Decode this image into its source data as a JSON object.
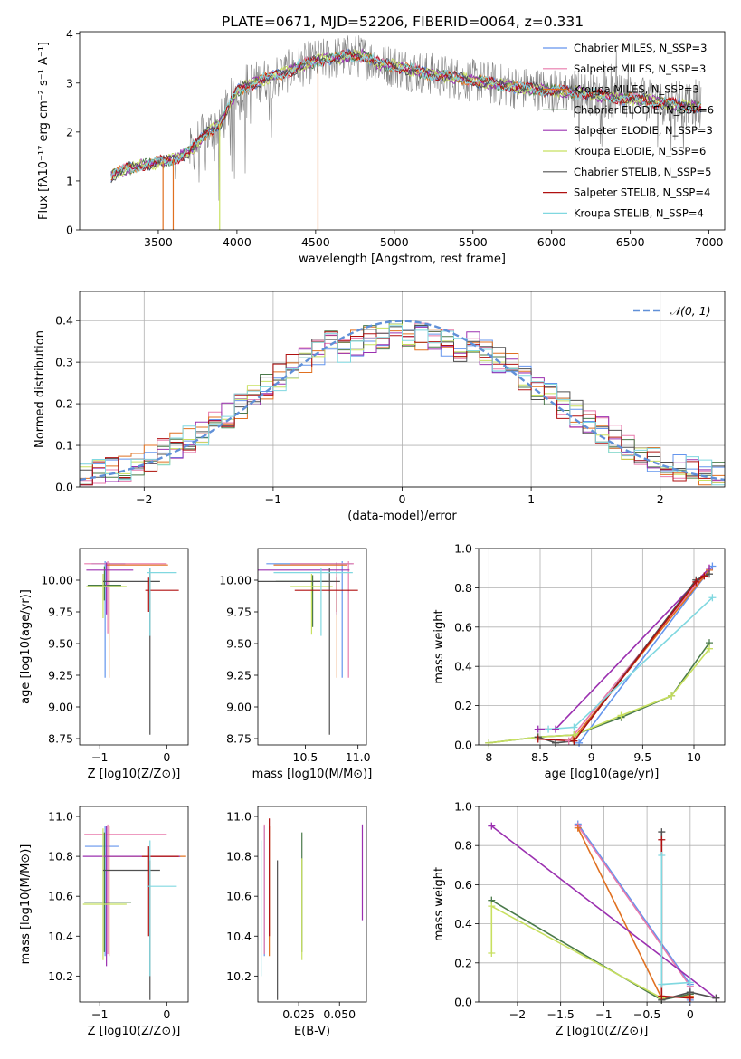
{
  "title": "PLATE=0671, MJD=52206, FIBERID=0064, z=0.331",
  "colors": {
    "Chabrier MILES": "#6495ed",
    "Salpeter MILES": "#e87aac",
    "Kroupa MILES": "#e07020",
    "Chabrier ELODIE": "#4a7a4a",
    "Salpeter ELODIE": "#9b30b0",
    "Kroupa ELODIE": "#c8e060",
    "Chabrier STELIB": "#505050",
    "Salpeter STELIB": "#b01010",
    "Kroupa STELIB": "#80d8e0",
    "data": "#808080",
    "normal": "#6090d8"
  },
  "chart_data": [
    {
      "id": "spectrum",
      "type": "line",
      "xlabel": "wavelength [Angstrom, rest frame]",
      "ylabel": "Flux [fλ10⁻¹⁷ erg cm⁻² s⁻¹ A⁻¹]",
      "xlim": [
        3000,
        7100
      ],
      "ylim": [
        0,
        4.05
      ],
      "xticks": [
        3500,
        4000,
        4500,
        5000,
        5500,
        6000,
        6500,
        7000
      ],
      "yticks": [
        0,
        1,
        2,
        3,
        4
      ],
      "continuum": {
        "x": [
          3200,
          3300,
          3400,
          3500,
          3600,
          3700,
          3800,
          3900,
          4000,
          4100,
          4200,
          4300,
          4400,
          4500,
          4600,
          4700,
          4800,
          4900,
          5000,
          5200,
          5400,
          5600,
          5800,
          6000,
          6200,
          6400,
          6600,
          6800,
          6950
        ],
        "y": [
          1.1,
          1.25,
          1.32,
          1.38,
          1.45,
          1.6,
          1.95,
          2.2,
          2.85,
          3.0,
          3.1,
          3.2,
          3.35,
          3.45,
          3.5,
          3.55,
          3.55,
          3.4,
          3.35,
          3.2,
          3.1,
          3.0,
          2.9,
          2.85,
          2.8,
          2.7,
          2.65,
          2.55,
          2.5
        ]
      },
      "legend": [
        {
          "label": "Chabrier MILES, N_SSP=3",
          "model": "Chabrier MILES"
        },
        {
          "label": "Salpeter MILES, N_SSP=3",
          "model": "Salpeter MILES"
        },
        {
          "label": "Kroupa MILES, N_SSP=3",
          "model": "Kroupa MILES"
        },
        {
          "label": "Chabrier ELODIE, N_SSP=6",
          "model": "Chabrier ELODIE"
        },
        {
          "label": "Salpeter ELODIE, N_SSP=3",
          "model": "Salpeter ELODIE"
        },
        {
          "label": "Kroupa ELODIE, N_SSP=6",
          "model": "Kroupa ELODIE"
        },
        {
          "label": "Chabrier STELIB, N_SSP=5",
          "model": "Chabrier STELIB"
        },
        {
          "label": "Salpeter STELIB, N_SSP=4",
          "model": "Salpeter STELIB"
        },
        {
          "label": "Kroupa STELIB, N_SSP=4",
          "model": "Kroupa STELIB"
        }
      ],
      "legend_loc": "right"
    },
    {
      "id": "residuals",
      "type": "step",
      "xlabel": "(data-model)/error",
      "ylabel": "Normed distribution",
      "xlim": [
        -2.5,
        2.5
      ],
      "ylim": [
        0,
        0.47
      ],
      "xticks": [
        -2,
        -1,
        0,
        1,
        2
      ],
      "yticks": [
        0.0,
        0.1,
        0.2,
        0.3,
        0.4
      ],
      "grid": true,
      "normal_label": "𝒩(0, 1)",
      "legend_loc": "top-right"
    },
    {
      "id": "age-vs-Z",
      "type": "errorbar",
      "xlabel": "Z [log10(Z/Z⊙)]",
      "ylabel": "age  [log10(age/yr)]",
      "xlim": [
        -1.3,
        0.32
      ],
      "ylim": [
        8.7,
        10.25
      ],
      "xticks": [
        -1,
        0
      ],
      "yticks": [
        8.75,
        9.0,
        9.25,
        9.5,
        9.75,
        10.0
      ],
      "ytick_labels": [
        "8.75",
        "9.00",
        "9.25",
        "9.50",
        "9.75",
        "10.00"
      ],
      "points": [
        {
          "model": "Chabrier MILES",
          "x": -0.92,
          "xerr": [
            0.2,
            0.3
          ],
          "y": 10.13,
          "yerr": [
            0.9,
            0.02
          ]
        },
        {
          "model": "Salpeter MILES",
          "x": -0.88,
          "xerr": [
            0.35,
            0.88
          ],
          "y": 10.13,
          "yerr": [
            0.55,
            0.02
          ]
        },
        {
          "model": "Kroupa MILES",
          "x": -0.86,
          "xerr": [
            0.05,
            0.88
          ],
          "y": 10.12,
          "yerr": [
            0.89,
            0.02
          ]
        },
        {
          "model": "Chabrier ELODIE",
          "x": -0.93,
          "xerr": [
            0.25,
            0.25
          ],
          "y": 9.96,
          "yerr": [
            0.12,
            0.15
          ]
        },
        {
          "model": "Salpeter ELODIE",
          "x": -0.9,
          "xerr": [
            0.3,
            0.4
          ],
          "y": 10.08,
          "yerr": [
            0.35,
            0.06
          ]
        },
        {
          "model": "Kroupa ELODIE",
          "x": -0.95,
          "xerr": [
            0.25,
            0.35
          ],
          "y": 9.95,
          "yerr": [
            0.25,
            0.1
          ]
        },
        {
          "model": "Chabrier STELIB",
          "x": -0.25,
          "xerr": [
            0.7,
            0.15
          ],
          "y": 9.99,
          "yerr": [
            1.21,
            0.11
          ]
        },
        {
          "model": "Salpeter STELIB",
          "x": -0.27,
          "xerr": [
            0.05,
            0.45
          ],
          "y": 9.92,
          "yerr": [
            0.17,
            0.1
          ]
        },
        {
          "model": "Kroupa STELIB",
          "x": -0.25,
          "xerr": [
            0.05,
            0.4
          ],
          "y": 10.06,
          "yerr": [
            0.5,
            0.04
          ]
        }
      ]
    },
    {
      "id": "age-vs-mass",
      "type": "errorbar",
      "xlabel": "mass [log10(M/M⊙)]",
      "xlim": [
        10.05,
        11.08
      ],
      "ylim": [
        8.7,
        10.25
      ],
      "xticks": [
        10.5,
        11.0
      ],
      "xtick_labels": [
        "10.5",
        "11.0"
      ],
      "yticks": [
        8.75,
        9.0,
        9.25,
        9.5,
        9.75,
        10.0
      ],
      "ytick_labels": [
        "8.75",
        "9.00",
        "9.25",
        "9.50",
        "9.75",
        "10.00"
      ],
      "points": [
        {
          "model": "Chabrier MILES",
          "x": 10.85,
          "xerr": [
            0.72,
            0.1
          ],
          "y": 10.13,
          "yerr": [
            0.9,
            0.02
          ]
        },
        {
          "model": "Salpeter MILES",
          "x": 10.91,
          "xerr": [
            0.55,
            0.05
          ],
          "y": 10.13,
          "yerr": [
            0.9,
            0.02
          ]
        },
        {
          "model": "Kroupa MILES",
          "x": 10.8,
          "xerr": [
            0.6,
            0.1
          ],
          "y": 10.12,
          "yerr": [
            0.89,
            0.02
          ]
        },
        {
          "model": "Chabrier ELODIE",
          "x": 10.57,
          "xerr": [
            0.35,
            0.15
          ],
          "y": 9.99,
          "yerr": [
            0.36,
            0.05
          ]
        },
        {
          "model": "Salpeter ELODIE",
          "x": 10.8,
          "xerr": [
            0.75,
            0.12
          ],
          "y": 10.08,
          "yerr": [
            0.35,
            0.06
          ]
        },
        {
          "model": "Kroupa ELODIE",
          "x": 10.56,
          "xerr": [
            0.2,
            0.2
          ],
          "y": 9.95,
          "yerr": [
            0.38,
            0.1
          ]
        },
        {
          "model": "Chabrier STELIB",
          "x": 10.73,
          "xerr": [
            0.7,
            0.1
          ],
          "y": 9.99,
          "yerr": [
            1.21,
            0.11
          ]
        },
        {
          "model": "Salpeter STELIB",
          "x": 10.8,
          "xerr": [
            0.4,
            0.2
          ],
          "y": 9.92,
          "yerr": [
            0.17,
            0.1
          ]
        },
        {
          "model": "Kroupa STELIB",
          "x": 10.65,
          "xerr": [
            0.45,
            0.3
          ],
          "y": 10.06,
          "yerr": [
            0.5,
            0.04
          ]
        }
      ]
    },
    {
      "id": "mass-weight-vs-age",
      "type": "line",
      "xlabel": "age  [log10(age/yr)]",
      "ylabel": "mass weight",
      "xlim": [
        7.9,
        10.3
      ],
      "ylim": [
        0,
        1.0
      ],
      "xticks": [
        8.0,
        8.5,
        9.0,
        9.5,
        10.0
      ],
      "yticks": [
        0.0,
        0.2,
        0.4,
        0.6,
        0.8,
        1.0
      ],
      "grid": true,
      "series": [
        {
          "model": "Chabrier MILES",
          "x": [
            8.88,
            10.18
          ],
          "y": [
            0.01,
            0.91
          ]
        },
        {
          "model": "Salpeter MILES",
          "x": [
            8.78,
            10.15
          ],
          "y": [
            0.02,
            0.9
          ]
        },
        {
          "model": "Kroupa MILES",
          "x": [
            8.82,
            10.15
          ],
          "y": [
            0.03,
            0.89
          ]
        },
        {
          "model": "Chabrier ELODIE",
          "x": [
            8.0,
            8.48,
            8.83,
            9.29,
            9.78,
            10.15
          ],
          "y": [
            0.01,
            0.04,
            0.05,
            0.14,
            0.25,
            0.52
          ]
        },
        {
          "model": "Salpeter ELODIE",
          "x": [
            8.48,
            8.65,
            10.15
          ],
          "y": [
            0.08,
            0.08,
            0.9
          ]
        },
        {
          "model": "Kroupa ELODIE",
          "x": [
            8.0,
            8.48,
            8.83,
            9.29,
            9.78,
            10.15
          ],
          "y": [
            0.01,
            0.04,
            0.05,
            0.15,
            0.25,
            0.49
          ]
        },
        {
          "model": "Chabrier STELIB",
          "x": [
            8.48,
            8.65,
            8.83,
            10.02,
            10.15
          ],
          "y": [
            0.04,
            0.01,
            0.02,
            0.84,
            0.87
          ]
        },
        {
          "model": "Salpeter STELIB",
          "x": [
            8.48,
            8.83,
            10.02,
            10.1
          ],
          "y": [
            0.03,
            0.02,
            0.83,
            0.86
          ]
        },
        {
          "model": "Kroupa STELIB",
          "x": [
            8.58,
            8.83,
            10.18
          ],
          "y": [
            0.08,
            0.09,
            0.75
          ]
        }
      ]
    },
    {
      "id": "mass-vs-Z",
      "type": "errorbar",
      "xlabel": "Z [log10(Z/Z⊙)]",
      "ylabel": "mass [log10(M/M⊙)]",
      "xlim": [
        -1.3,
        0.32
      ],
      "ylim": [
        10.07,
        11.05
      ],
      "xticks": [
        -1,
        0
      ],
      "yticks": [
        10.2,
        10.4,
        10.6,
        10.8,
        11.0
      ],
      "points": [
        {
          "model": "Chabrier MILES",
          "x": -0.92,
          "xerr": [
            0.3,
            0.2
          ],
          "y": 10.85,
          "yerr": [
            0.55,
            0.1
          ]
        },
        {
          "model": "Salpeter MILES",
          "x": -0.88,
          "xerr": [
            0.35,
            0.88
          ],
          "y": 10.91,
          "yerr": [
            0.6,
            0.05
          ]
        },
        {
          "model": "Kroupa MILES",
          "x": -0.86,
          "xerr": [
            0.05,
            1.15
          ],
          "y": 10.8,
          "yerr": [
            0.5,
            0.15
          ]
        },
        {
          "model": "Chabrier ELODIE",
          "x": -0.93,
          "xerr": [
            0.3,
            0.4
          ],
          "y": 10.57,
          "yerr": [
            0.25,
            0.35
          ]
        },
        {
          "model": "Salpeter ELODIE",
          "x": -0.9,
          "xerr": [
            0.35,
            1.1
          ],
          "y": 10.8,
          "yerr": [
            0.55,
            0.15
          ]
        },
        {
          "model": "Kroupa ELODIE",
          "x": -0.95,
          "xerr": [
            0.3,
            0.35
          ],
          "y": 10.56,
          "yerr": [
            0.28,
            0.38
          ]
        },
        {
          "model": "Chabrier STELIB",
          "x": -0.25,
          "xerr": [
            0.7,
            0.15
          ],
          "y": 10.73,
          "yerr": [
            0.65,
            0.05
          ]
        },
        {
          "model": "Salpeter STELIB",
          "x": -0.27,
          "xerr": [
            0.1,
            0.45
          ],
          "y": 10.8,
          "yerr": [
            0.4,
            0.05
          ]
        },
        {
          "model": "Kroupa STELIB",
          "x": -0.25,
          "xerr": [
            0.05,
            0.4
          ],
          "y": 10.65,
          "yerr": [
            0.45,
            0.23
          ]
        }
      ]
    },
    {
      "id": "mass-vs-ebv",
      "type": "errorbar",
      "xlabel": "E(B-V)",
      "xlim": [
        0.0,
        0.0665
      ],
      "ylim": [
        10.07,
        11.05
      ],
      "xticks": [
        0.025,
        0.05
      ],
      "xtick_labels": [
        "0.025",
        "0.050"
      ],
      "yticks": [
        10.2,
        10.4,
        10.6,
        10.8,
        11.0
      ],
      "points": [
        {
          "model": "Chabrier MILES",
          "x": 0.004,
          "y": 10.85,
          "yerr": [
            0.55,
            0.1
          ]
        },
        {
          "model": "Salpeter MILES",
          "x": 0.004,
          "y": 10.91,
          "yerr": [
            0.6,
            0.05
          ]
        },
        {
          "model": "Kroupa MILES",
          "x": 0.007,
          "y": 10.8,
          "yerr": [
            0.5,
            0.15
          ]
        },
        {
          "model": "Chabrier ELODIE",
          "x": 0.027,
          "y": 10.57,
          "yerr": [
            0.25,
            0.35
          ]
        },
        {
          "model": "Salpeter ELODIE",
          "x": 0.064,
          "y": 10.8,
          "yerr": [
            0.32,
            0.16
          ]
        },
        {
          "model": "Kroupa ELODIE",
          "x": 0.027,
          "y": 10.56,
          "yerr": [
            0.28,
            0.23
          ]
        },
        {
          "model": "Chabrier STELIB",
          "x": 0.012,
          "y": 10.73,
          "yerr": [
            0.65,
            0.05
          ]
        },
        {
          "model": "Salpeter STELIB",
          "x": 0.007,
          "y": 10.8,
          "yerr": [
            0.4,
            0.19
          ]
        },
        {
          "model": "Kroupa STELIB",
          "x": 0.002,
          "y": 10.65,
          "yerr": [
            0.45,
            0.23
          ]
        }
      ]
    },
    {
      "id": "mass-weight-vs-Z",
      "type": "line",
      "xlabel": "Z [log10(Z/Z⊙)]",
      "ylabel": "mass weight",
      "xlim": [
        -2.45,
        0.4
      ],
      "ylim": [
        0,
        1.0
      ],
      "xticks": [
        -2.0,
        -1.5,
        -1.0,
        -0.5,
        0.0
      ],
      "yticks": [
        0.0,
        0.2,
        0.4,
        0.6,
        0.8,
        1.0
      ],
      "grid": true,
      "series": [
        {
          "model": "Chabrier MILES",
          "x": [
            -1.3,
            0.0,
            0.0
          ],
          "y": [
            0.91,
            0.09,
            0.01
          ]
        },
        {
          "model": "Salpeter MILES",
          "x": [
            -1.3,
            0.0
          ],
          "y": [
            0.9,
            0.08
          ]
        },
        {
          "model": "Kroupa MILES",
          "x": [
            -1.3,
            -0.33,
            0.0
          ],
          "y": [
            0.89,
            0.02,
            0.03
          ]
        },
        {
          "model": "Chabrier ELODIE",
          "x": [
            -2.3,
            -0.33,
            0.0
          ],
          "y": [
            0.52,
            0.01,
            0.04
          ]
        },
        {
          "model": "Salpeter ELODIE",
          "x": [
            -2.3,
            0.3
          ],
          "y": [
            0.9,
            0.02
          ]
        },
        {
          "model": "Kroupa ELODIE",
          "x": [
            -2.3,
            -2.3,
            -0.33
          ],
          "y": [
            0.25,
            0.49,
            0.02
          ]
        },
        {
          "model": "Chabrier STELIB",
          "x": [
            -0.33,
            -0.33,
            0.0,
            0.3
          ],
          "y": [
            0.87,
            0.01,
            0.05,
            0.02
          ]
        },
        {
          "model": "Salpeter STELIB",
          "x": [
            -0.33,
            -0.33,
            0.0
          ],
          "y": [
            0.83,
            0.03,
            0.02
          ]
        },
        {
          "model": "Kroupa STELIB",
          "x": [
            -0.33,
            -0.33,
            0.0
          ],
          "y": [
            0.75,
            0.09,
            0.1
          ]
        }
      ]
    }
  ]
}
